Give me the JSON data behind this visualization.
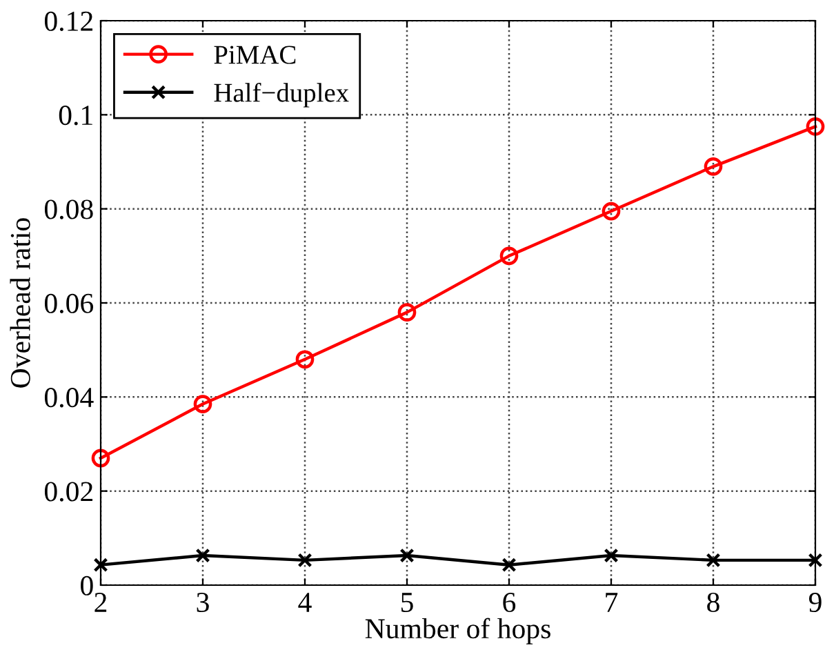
{
  "chart_data": {
    "type": "line",
    "xlabel": "Number of hops",
    "ylabel": "Overhead ratio",
    "x": [
      2,
      3,
      4,
      5,
      6,
      7,
      8,
      9
    ],
    "series": [
      {
        "name": "PiMAC",
        "color": "#ff0000",
        "marker": "circle",
        "values": [
          0.027,
          0.0385,
          0.048,
          0.058,
          0.07,
          0.0795,
          0.089,
          0.0975
        ]
      },
      {
        "name": "Half−duplex",
        "color": "#000000",
        "marker": "cross",
        "values": [
          0.0043,
          0.0063,
          0.0053,
          0.0063,
          0.0043,
          0.0063,
          0.0053,
          0.0053
        ]
      }
    ],
    "xlim": [
      2,
      9
    ],
    "xticks": [
      2,
      3,
      4,
      5,
      6,
      7,
      8,
      9
    ],
    "ylim": [
      0,
      0.12
    ],
    "yticks": [
      0,
      0.02,
      0.04,
      0.06,
      0.08,
      0.1,
      0.12
    ],
    "grid": true,
    "legend": "top left",
    "line_style": "solid"
  }
}
